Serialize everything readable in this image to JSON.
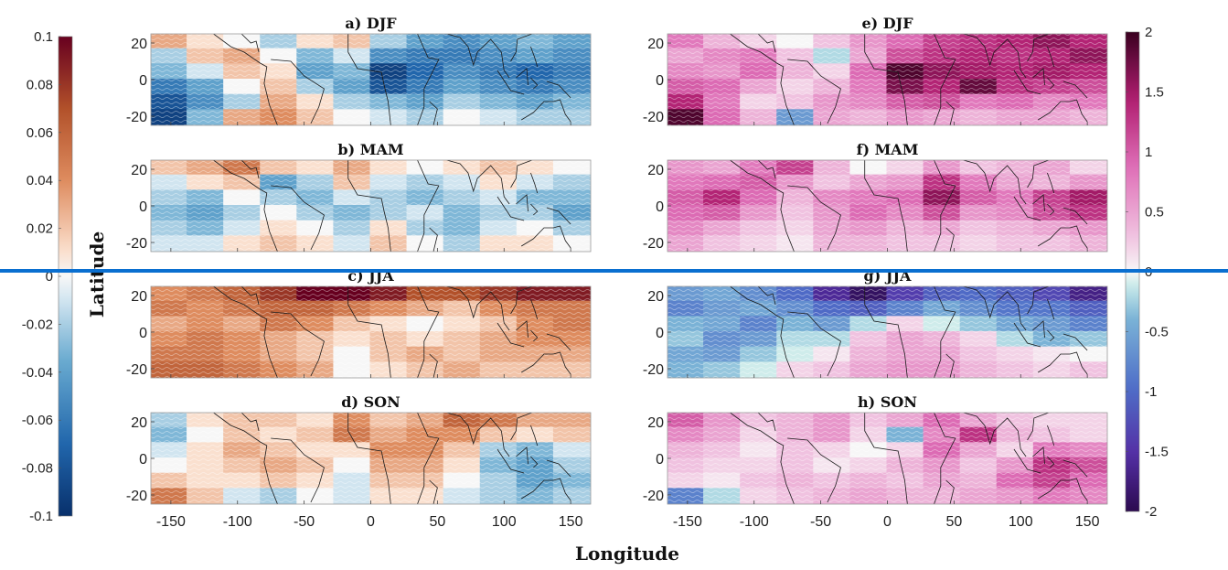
{
  "chart_data": [
    {
      "type": "heatmap",
      "title": "a) DJF",
      "ylabel": "Latitude",
      "xlabel": "Longitude",
      "x_ticks": [
        -150,
        -100,
        -50,
        0,
        50,
        100,
        150
      ],
      "y_ticks": [
        20,
        0,
        -20
      ],
      "xlim": [
        -165,
        165
      ],
      "ylim": [
        -25,
        25
      ],
      "colormap": "red-white-blue",
      "clim": [
        -0.1,
        0.1
      ],
      "grid_lon": [
        -165,
        -135,
        -105,
        -75,
        -45,
        -15,
        15,
        45,
        75,
        105,
        135,
        165
      ],
      "grid_lat": [
        25,
        15,
        5,
        -5,
        -15,
        -25
      ],
      "values": [
        [
          0.03,
          0.01,
          0.0,
          -0.02,
          0.01,
          0.02,
          -0.02,
          -0.04,
          -0.05,
          -0.04,
          -0.03,
          -0.04
        ],
        [
          -0.02,
          0.02,
          0.03,
          0.0,
          -0.03,
          -0.01,
          -0.05,
          -0.06,
          -0.06,
          -0.05,
          -0.04,
          -0.05
        ],
        [
          -0.03,
          -0.01,
          0.02,
          0.01,
          -0.04,
          -0.03,
          -0.09,
          -0.07,
          -0.05,
          -0.06,
          -0.07,
          -0.06
        ],
        [
          -0.06,
          -0.04,
          0.0,
          0.02,
          -0.02,
          -0.04,
          -0.08,
          -0.06,
          -0.04,
          -0.05,
          -0.06,
          -0.05
        ],
        [
          -0.08,
          -0.05,
          -0.02,
          0.03,
          0.01,
          -0.02,
          -0.03,
          -0.04,
          -0.02,
          -0.03,
          -0.04,
          -0.03
        ],
        [
          -0.09,
          -0.03,
          0.03,
          0.04,
          0.02,
          0.0,
          -0.01,
          -0.02,
          0.0,
          -0.01,
          -0.02,
          -0.02
        ]
      ]
    },
    {
      "type": "heatmap",
      "title": "b) MAM",
      "ylabel": "Latitude",
      "xlabel": "Longitude",
      "x_ticks": [
        -150,
        -100,
        -50,
        0,
        50,
        100,
        150
      ],
      "y_ticks": [
        20,
        0,
        -20
      ],
      "xlim": [
        -165,
        165
      ],
      "ylim": [
        -25,
        25
      ],
      "colormap": "red-white-blue",
      "clim": [
        -0.1,
        0.1
      ],
      "grid_lon": [
        -165,
        -135,
        -105,
        -75,
        -45,
        -15,
        15,
        45,
        75,
        105,
        135,
        165
      ],
      "grid_lat": [
        25,
        15,
        5,
        -5,
        -15,
        -25
      ],
      "values": [
        [
          0.02,
          0.03,
          0.05,
          0.02,
          0.01,
          0.03,
          0.01,
          0.0,
          0.01,
          0.02,
          0.01,
          0.0
        ],
        [
          -0.01,
          0.01,
          0.02,
          -0.04,
          -0.02,
          0.02,
          -0.01,
          -0.02,
          -0.01,
          0.01,
          -0.01,
          -0.02
        ],
        [
          -0.02,
          -0.03,
          0.0,
          -0.02,
          -0.03,
          -0.01,
          -0.02,
          -0.03,
          -0.02,
          -0.01,
          -0.03,
          -0.03
        ],
        [
          -0.03,
          -0.04,
          -0.02,
          0.0,
          -0.02,
          -0.03,
          -0.02,
          -0.01,
          -0.03,
          -0.02,
          -0.02,
          -0.04
        ],
        [
          -0.02,
          -0.03,
          -0.01,
          0.01,
          0.0,
          -0.02,
          0.01,
          -0.02,
          -0.03,
          -0.01,
          0.0,
          -0.02
        ],
        [
          -0.01,
          -0.01,
          0.01,
          0.02,
          0.01,
          -0.01,
          0.02,
          0.0,
          -0.02,
          0.01,
          0.01,
          0.0
        ]
      ]
    },
    {
      "type": "heatmap",
      "title": "c) JJA",
      "ylabel": "Latitude",
      "xlabel": "Longitude",
      "x_ticks": [
        -150,
        -100,
        -50,
        0,
        50,
        100,
        150
      ],
      "y_ticks": [
        20,
        0,
        -20
      ],
      "xlim": [
        -165,
        165
      ],
      "ylim": [
        -25,
        25
      ],
      "colormap": "red-white-blue",
      "clim": [
        -0.1,
        0.1
      ],
      "grid_lon": [
        -165,
        -135,
        -105,
        -75,
        -45,
        -15,
        15,
        45,
        75,
        105,
        135,
        165
      ],
      "grid_lat": [
        25,
        15,
        5,
        -5,
        -15,
        -25
      ],
      "values": [
        [
          0.04,
          0.05,
          0.06,
          0.08,
          0.1,
          0.1,
          0.09,
          0.07,
          0.07,
          0.08,
          0.09,
          0.09
        ],
        [
          0.05,
          0.04,
          0.05,
          0.06,
          0.06,
          0.05,
          0.04,
          0.03,
          0.02,
          0.04,
          0.05,
          0.05
        ],
        [
          0.03,
          0.04,
          0.03,
          0.05,
          0.04,
          0.02,
          0.01,
          0.0,
          0.01,
          0.02,
          0.04,
          0.05
        ],
        [
          0.04,
          0.05,
          0.04,
          0.03,
          0.02,
          0.01,
          0.02,
          0.01,
          0.02,
          0.03,
          0.04,
          0.04
        ],
        [
          0.05,
          0.05,
          0.04,
          0.03,
          0.02,
          0.0,
          0.02,
          0.03,
          0.02,
          0.03,
          0.03,
          0.03
        ],
        [
          0.06,
          0.06,
          0.05,
          0.04,
          0.03,
          0.0,
          0.01,
          0.02,
          0.03,
          0.02,
          0.02,
          0.02
        ]
      ]
    },
    {
      "type": "heatmap",
      "title": "d) SON",
      "ylabel": "Latitude",
      "xlabel": "Longitude",
      "x_ticks": [
        -150,
        -100,
        -50,
        0,
        50,
        100,
        150
      ],
      "y_ticks": [
        20,
        0,
        -20
      ],
      "xlim": [
        -165,
        165
      ],
      "ylim": [
        -25,
        25
      ],
      "colormap": "red-white-blue",
      "clim": [
        -0.1,
        0.1
      ],
      "grid_lon": [
        -165,
        -135,
        -105,
        -75,
        -45,
        -15,
        15,
        45,
        75,
        105,
        135,
        165
      ],
      "grid_lat": [
        25,
        15,
        5,
        -5,
        -15,
        -25
      ],
      "values": [
        [
          -0.02,
          0.01,
          0.02,
          0.02,
          0.01,
          0.04,
          0.02,
          0.03,
          0.06,
          0.05,
          0.03,
          0.03
        ],
        [
          -0.03,
          0.0,
          0.02,
          0.01,
          0.02,
          0.05,
          0.03,
          0.04,
          0.04,
          0.02,
          0.01,
          0.02
        ],
        [
          -0.01,
          0.01,
          0.03,
          0.02,
          0.01,
          0.01,
          0.04,
          0.04,
          0.02,
          -0.02,
          -0.03,
          -0.01
        ],
        [
          0.0,
          0.01,
          0.02,
          0.03,
          0.02,
          0.0,
          0.03,
          0.03,
          0.01,
          -0.03,
          -0.04,
          -0.02
        ],
        [
          0.02,
          0.01,
          0.01,
          0.02,
          0.01,
          -0.01,
          0.02,
          0.02,
          0.0,
          -0.02,
          -0.04,
          -0.03
        ],
        [
          0.05,
          0.02,
          -0.01,
          -0.02,
          0.0,
          -0.01,
          0.01,
          0.01,
          -0.01,
          -0.02,
          -0.03,
          -0.02
        ]
      ]
    },
    {
      "type": "heatmap",
      "title": "e) DJF",
      "xlabel": "Longitude",
      "x_ticks": [
        -150,
        -100,
        -50,
        0,
        50,
        100,
        150
      ],
      "y_ticks": [
        20,
        0,
        -20
      ],
      "xlim": [
        -165,
        165
      ],
      "ylim": [
        -25,
        25
      ],
      "colormap": "purple-white-magenta",
      "clim": [
        -2,
        2
      ],
      "grid_lon": [
        -165,
        -135,
        -105,
        -75,
        -45,
        -15,
        15,
        45,
        75,
        105,
        135,
        165
      ],
      "grid_lat": [
        25,
        15,
        5,
        -5,
        -15,
        -25
      ],
      "values": [
        [
          0.8,
          0.4,
          0.2,
          0.0,
          0.3,
          0.6,
          0.9,
          1.2,
          1.3,
          1.4,
          1.6,
          1.4
        ],
        [
          0.5,
          0.7,
          0.8,
          0.3,
          -0.2,
          0.5,
          1.1,
          1.3,
          1.4,
          1.3,
          1.4,
          1.6
        ],
        [
          0.7,
          0.6,
          0.9,
          0.4,
          0.2,
          0.9,
          1.9,
          1.6,
          1.5,
          1.4,
          1.5,
          1.4
        ],
        [
          1.0,
          0.9,
          0.5,
          0.2,
          0.4,
          0.8,
          1.7,
          1.4,
          1.8,
          1.3,
          1.2,
          1.1
        ],
        [
          1.4,
          0.8,
          0.2,
          0.3,
          0.6,
          0.7,
          1.0,
          1.1,
          0.8,
          0.9,
          0.7,
          0.8
        ],
        [
          1.9,
          0.9,
          0.4,
          -0.6,
          0.5,
          0.4,
          0.6,
          0.5,
          0.4,
          0.5,
          0.5,
          0.4
        ]
      ]
    },
    {
      "type": "heatmap",
      "title": "f) MAM",
      "xlabel": "Longitude",
      "x_ticks": [
        -150,
        -100,
        -50,
        0,
        50,
        100,
        150
      ],
      "y_ticks": [
        20,
        0,
        -20
      ],
      "xlim": [
        -165,
        165
      ],
      "ylim": [
        -25,
        25
      ],
      "colormap": "purple-white-magenta",
      "clim": [
        -2,
        2
      ],
      "grid_lon": [
        -165,
        -135,
        -105,
        -75,
        -45,
        -15,
        15,
        45,
        75,
        105,
        135,
        165
      ],
      "grid_lat": [
        25,
        15,
        5,
        -5,
        -15,
        -25
      ],
      "values": [
        [
          0.6,
          0.5,
          0.8,
          1.2,
          0.4,
          0.0,
          0.2,
          0.6,
          0.3,
          0.4,
          0.5,
          0.2
        ],
        [
          0.8,
          0.9,
          1.0,
          0.6,
          0.3,
          0.5,
          0.6,
          1.3,
          0.8,
          0.5,
          0.4,
          0.6
        ],
        [
          1.0,
          1.4,
          0.9,
          0.4,
          0.7,
          0.8,
          0.9,
          1.6,
          1.0,
          0.8,
          1.2,
          1.5
        ],
        [
          0.9,
          1.0,
          0.6,
          0.3,
          0.6,
          0.9,
          0.7,
          1.1,
          0.6,
          0.7,
          1.1,
          1.3
        ],
        [
          0.7,
          0.5,
          0.3,
          0.2,
          0.5,
          0.6,
          0.4,
          0.5,
          0.3,
          0.4,
          0.5,
          0.6
        ],
        [
          0.5,
          0.3,
          0.2,
          0.1,
          0.4,
          0.4,
          0.3,
          0.3,
          0.2,
          0.3,
          0.3,
          0.4
        ]
      ]
    },
    {
      "type": "heatmap",
      "title": "g) JJA",
      "xlabel": "Longitude",
      "x_ticks": [
        -150,
        -100,
        -50,
        0,
        50,
        100,
        150
      ],
      "y_ticks": [
        20,
        0,
        -20
      ],
      "xlim": [
        -165,
        165
      ],
      "ylim": [
        -25,
        25
      ],
      "colormap": "purple-white-magenta",
      "clim": [
        -2,
        2
      ],
      "grid_lon": [
        -165,
        -135,
        -105,
        -75,
        -45,
        -15,
        15,
        45,
        75,
        105,
        135,
        165
      ],
      "grid_lat": [
        25,
        15,
        5,
        -5,
        -15,
        -25
      ],
      "values": [
        [
          -0.6,
          -0.5,
          -0.7,
          -1.0,
          -1.6,
          -1.9,
          -1.4,
          -1.1,
          -1.0,
          -1.1,
          -1.3,
          -1.7
        ],
        [
          -0.8,
          -0.6,
          -0.5,
          -0.7,
          -1.0,
          -1.1,
          -0.8,
          -0.5,
          -0.7,
          -0.9,
          -0.9,
          -1.1
        ],
        [
          -0.4,
          -0.5,
          -0.8,
          -0.4,
          -0.6,
          -0.2,
          0.2,
          -0.1,
          -0.3,
          -0.5,
          -0.6,
          -0.8
        ],
        [
          -0.3,
          -0.7,
          -0.6,
          -0.2,
          -0.2,
          0.3,
          0.5,
          0.4,
          0.2,
          -0.2,
          -0.4,
          -0.3
        ],
        [
          -0.5,
          -0.6,
          -0.3,
          -0.1,
          0.1,
          0.4,
          0.5,
          0.5,
          0.3,
          0.2,
          0.1,
          0.0
        ],
        [
          -0.4,
          -0.3,
          -0.1,
          0.2,
          0.3,
          0.5,
          0.6,
          0.6,
          0.4,
          0.3,
          0.2,
          0.3
        ]
      ]
    },
    {
      "type": "heatmap",
      "title": "h) SON",
      "xlabel": "Longitude",
      "x_ticks": [
        -150,
        -100,
        -50,
        0,
        50,
        100,
        150
      ],
      "y_ticks": [
        20,
        0,
        -20
      ],
      "xlim": [
        -165,
        165
      ],
      "ylim": [
        -25,
        25
      ],
      "colormap": "purple-white-magenta",
      "clim": [
        -2,
        2
      ],
      "grid_lon": [
        -165,
        -135,
        -105,
        -75,
        -45,
        -15,
        15,
        45,
        75,
        105,
        135,
        165
      ],
      "grid_lat": [
        25,
        15,
        5,
        -5,
        -15,
        -25
      ],
      "values": [
        [
          1.0,
          0.6,
          0.3,
          0.4,
          0.6,
          0.3,
          0.5,
          0.9,
          0.5,
          0.3,
          0.2,
          0.2
        ],
        [
          0.7,
          0.5,
          0.2,
          0.4,
          0.6,
          0.2,
          -0.4,
          0.7,
          1.3,
          0.4,
          0.3,
          0.2
        ],
        [
          0.4,
          0.3,
          0.1,
          0.3,
          0.2,
          0.0,
          0.2,
          0.9,
          0.5,
          0.2,
          0.8,
          0.7
        ],
        [
          0.3,
          0.2,
          0.2,
          0.3,
          0.1,
          0.2,
          0.4,
          0.6,
          0.3,
          0.6,
          1.3,
          1.1
        ],
        [
          0.2,
          0.1,
          0.3,
          0.4,
          0.3,
          0.4,
          0.3,
          0.5,
          0.4,
          0.9,
          1.2,
          0.9
        ],
        [
          -0.8,
          -0.2,
          0.2,
          0.3,
          0.4,
          0.5,
          0.4,
          0.4,
          0.5,
          0.6,
          0.8,
          0.7
        ]
      ]
    }
  ],
  "colorbars": [
    {
      "ticks": [
        "0.1",
        "0.08",
        "0.06",
        "0.04",
        "0.02",
        "0",
        "-0.02",
        "-0.04",
        "-0.06",
        "-0.08",
        "-0.1"
      ],
      "range": [
        -0.1,
        0.1
      ],
      "colormap": "red-white-blue"
    },
    {
      "ticks": [
        "2",
        "1.5",
        "1",
        "0.5",
        "0",
        "-0.5",
        "-1",
        "-1.5",
        "-2"
      ],
      "range": [
        -2,
        2
      ],
      "colormap": "purple-white-magenta"
    }
  ],
  "colors": {
    "dark_red": "#67001f",
    "red_brown": "#b2512a",
    "peach": "#f4c8ad",
    "white": "#f7f7f7",
    "light_blue": "#b6d6e8",
    "mid_blue": "#4d8fc2",
    "dark_blue": "#08306b",
    "magenta_dark": "#3a0020",
    "magenta": "#c0287a",
    "pink_light": "#eeb4d8",
    "teal_light": "#b7e3e0",
    "mid_purple_blue": "#4f6fc8",
    "dark_purple": "#2c0a4f",
    "separator_line": "#0a6fd0"
  }
}
